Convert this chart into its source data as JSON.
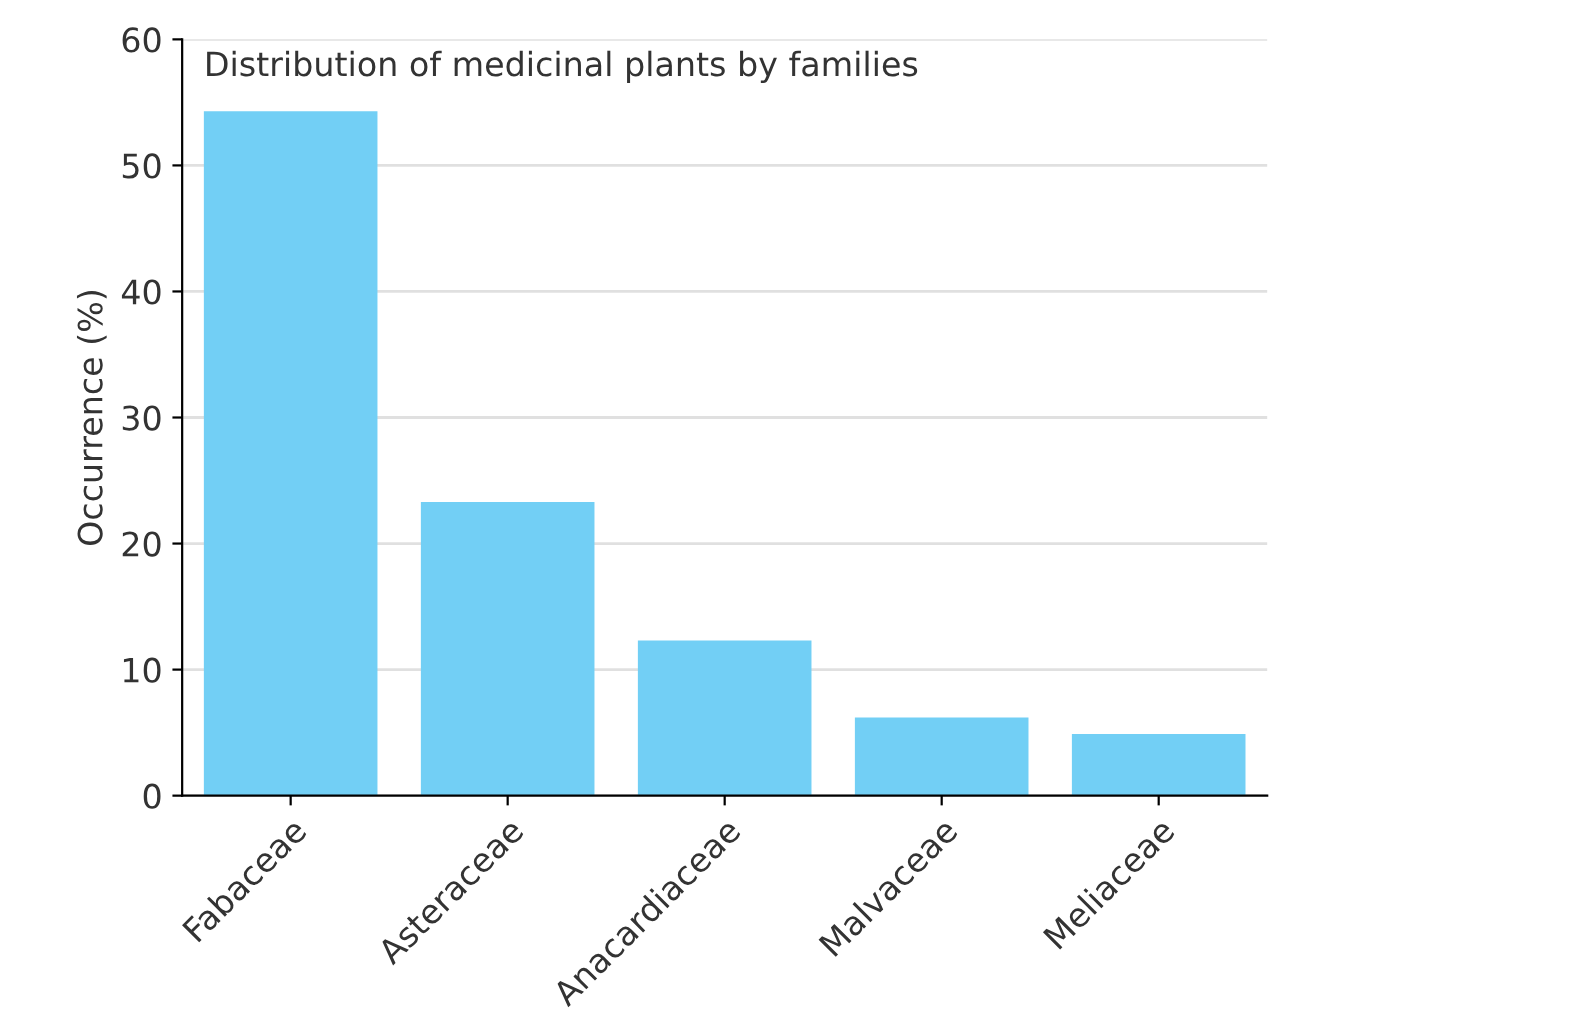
{
  "chart_data": {
    "type": "bar",
    "title": "Distribution of medicinal plants by families",
    "ylabel": "Occurrence (%)",
    "categories": [
      "Fabaceae",
      "Asteraceae",
      "Anacardiaceae",
      "Malvaceae",
      "Meliaceae"
    ],
    "values": [
      54.3,
      23.3,
      12.3,
      6.2,
      4.9
    ],
    "color": "#72cff5",
    "ylim": [
      0,
      60
    ],
    "yticks": [
      0,
      10,
      20,
      30,
      40,
      50,
      60
    ],
    "grid": "y"
  }
}
